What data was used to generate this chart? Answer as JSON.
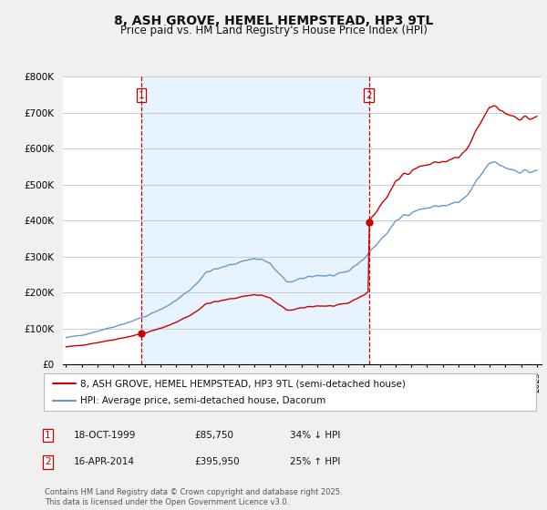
{
  "title": "8, ASH GROVE, HEMEL HEMPSTEAD, HP3 9TL",
  "subtitle": "Price paid vs. HM Land Registry's House Price Index (HPI)",
  "title_fontsize": 10,
  "subtitle_fontsize": 8.5,
  "background_color": "#f0f0f0",
  "plot_bg_color": "#ffffff",
  "shaded_bg_color": "#ddeeff",
  "red_line_color": "#cc0000",
  "blue_line_color": "#6699cc",
  "vline_color": "#cc0000",
  "grid_color": "#cccccc",
  "ylim": [
    0,
    800000
  ],
  "yticks": [
    0,
    100000,
    200000,
    300000,
    400000,
    500000,
    600000,
    700000,
    800000
  ],
  "ytick_labels": [
    "£0",
    "£100K",
    "£200K",
    "£300K",
    "£400K",
    "£500K",
    "£600K",
    "£700K",
    "£800K"
  ],
  "legend_line1": "8, ASH GROVE, HEMEL HEMPSTEAD, HP3 9TL (semi-detached house)",
  "legend_line2": "HPI: Average price, semi-detached house, Dacorum",
  "annotation1_label": "1",
  "annotation1_date": "18-OCT-1999",
  "annotation1_price": "£85,750",
  "annotation1_hpi": "34% ↓ HPI",
  "annotation2_label": "2",
  "annotation2_date": "16-APR-2014",
  "annotation2_price": "£395,950",
  "annotation2_hpi": "25% ↑ HPI",
  "footer": "Contains HM Land Registry data © Crown copyright and database right 2025.\nThis data is licensed under the Open Government Licence v3.0.",
  "sale1_x": 1999.8,
  "sale1_y": 85750,
  "sale2_x": 2014.3,
  "sale2_y": 395950,
  "vline1_x": 1999.8,
  "vline2_x": 2014.3,
  "xlim_left": 1994.8,
  "xlim_right": 2025.3
}
